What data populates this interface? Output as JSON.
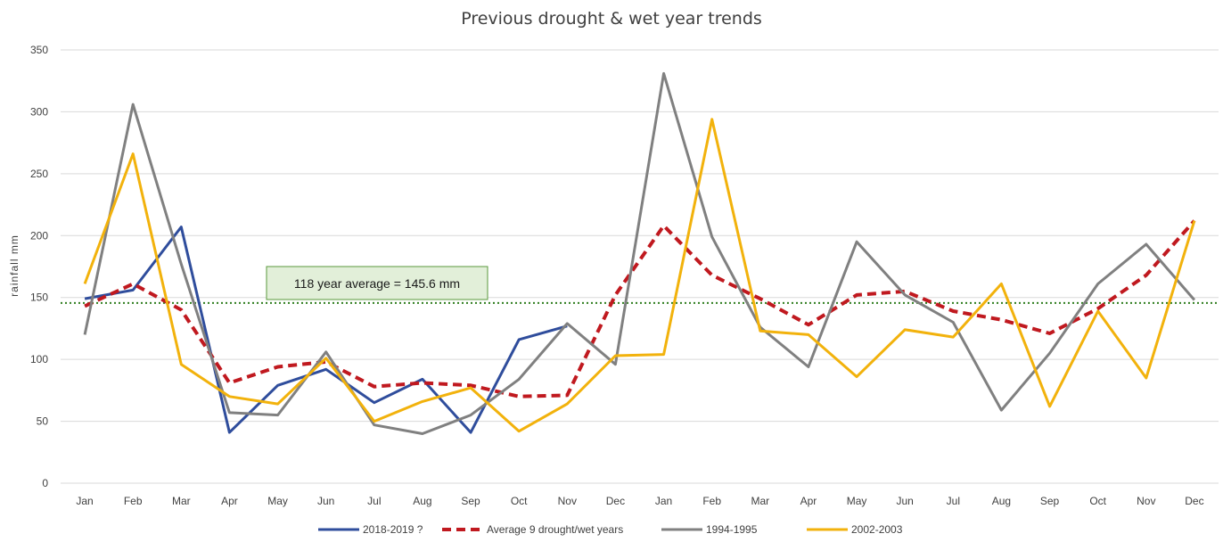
{
  "chart_data": {
    "type": "line",
    "title": "Previous drought & wet year trends",
    "ylabel": "rainfall mm",
    "xlabel": "",
    "ylim": [
      0,
      350
    ],
    "yticks": [
      0,
      50,
      100,
      150,
      200,
      250,
      300,
      350
    ],
    "categories": [
      "Jan",
      "Feb",
      "Mar",
      "Apr",
      "May",
      "Jun",
      "Jul",
      "Aug",
      "Sep",
      "Oct",
      "Nov",
      "Dec",
      "Jan",
      "Feb",
      "Mar",
      "Apr",
      "May",
      "Jun",
      "Jul",
      "Aug",
      "Sep",
      "Oct",
      "Nov",
      "Dec"
    ],
    "grid": true,
    "legend_position": "bottom",
    "reference_line": {
      "value": 145.6,
      "label": "118 year average = 145.6 mm",
      "color": "#2e7d1e"
    },
    "series": [
      {
        "name": "2018-2019 ?",
        "color": "#2f4d9c",
        "style": "solid",
        "values": [
          149,
          156,
          207,
          41,
          79,
          92,
          65,
          84,
          41,
          116,
          127,
          null,
          null,
          null,
          null,
          null,
          null,
          null,
          null,
          null,
          null,
          null,
          null,
          null
        ]
      },
      {
        "name": "Average 9 drought/wet years",
        "color": "#c0191f",
        "style": "dashed",
        "values": [
          143,
          161,
          140,
          81,
          94,
          98,
          78,
          81,
          79,
          70,
          71,
          152,
          208,
          168,
          149,
          128,
          152,
          155,
          139,
          132,
          121,
          141,
          168,
          212
        ]
      },
      {
        "name": "1994-1995",
        "color": "#808080",
        "style": "solid",
        "values": [
          120,
          306,
          177,
          57,
          55,
          106,
          47,
          40,
          55,
          84,
          129,
          96,
          331,
          199,
          126,
          94,
          195,
          152,
          130,
          59,
          105,
          161,
          193,
          148
        ]
      },
      {
        "name": "2002-2003",
        "color": "#f2b20c",
        "style": "solid",
        "values": [
          161,
          266,
          96,
          70,
          64,
          101,
          50,
          66,
          77,
          42,
          64,
          103,
          104,
          294,
          123,
          120,
          86,
          124,
          118,
          161,
          62,
          139,
          85,
          212
        ]
      }
    ]
  }
}
